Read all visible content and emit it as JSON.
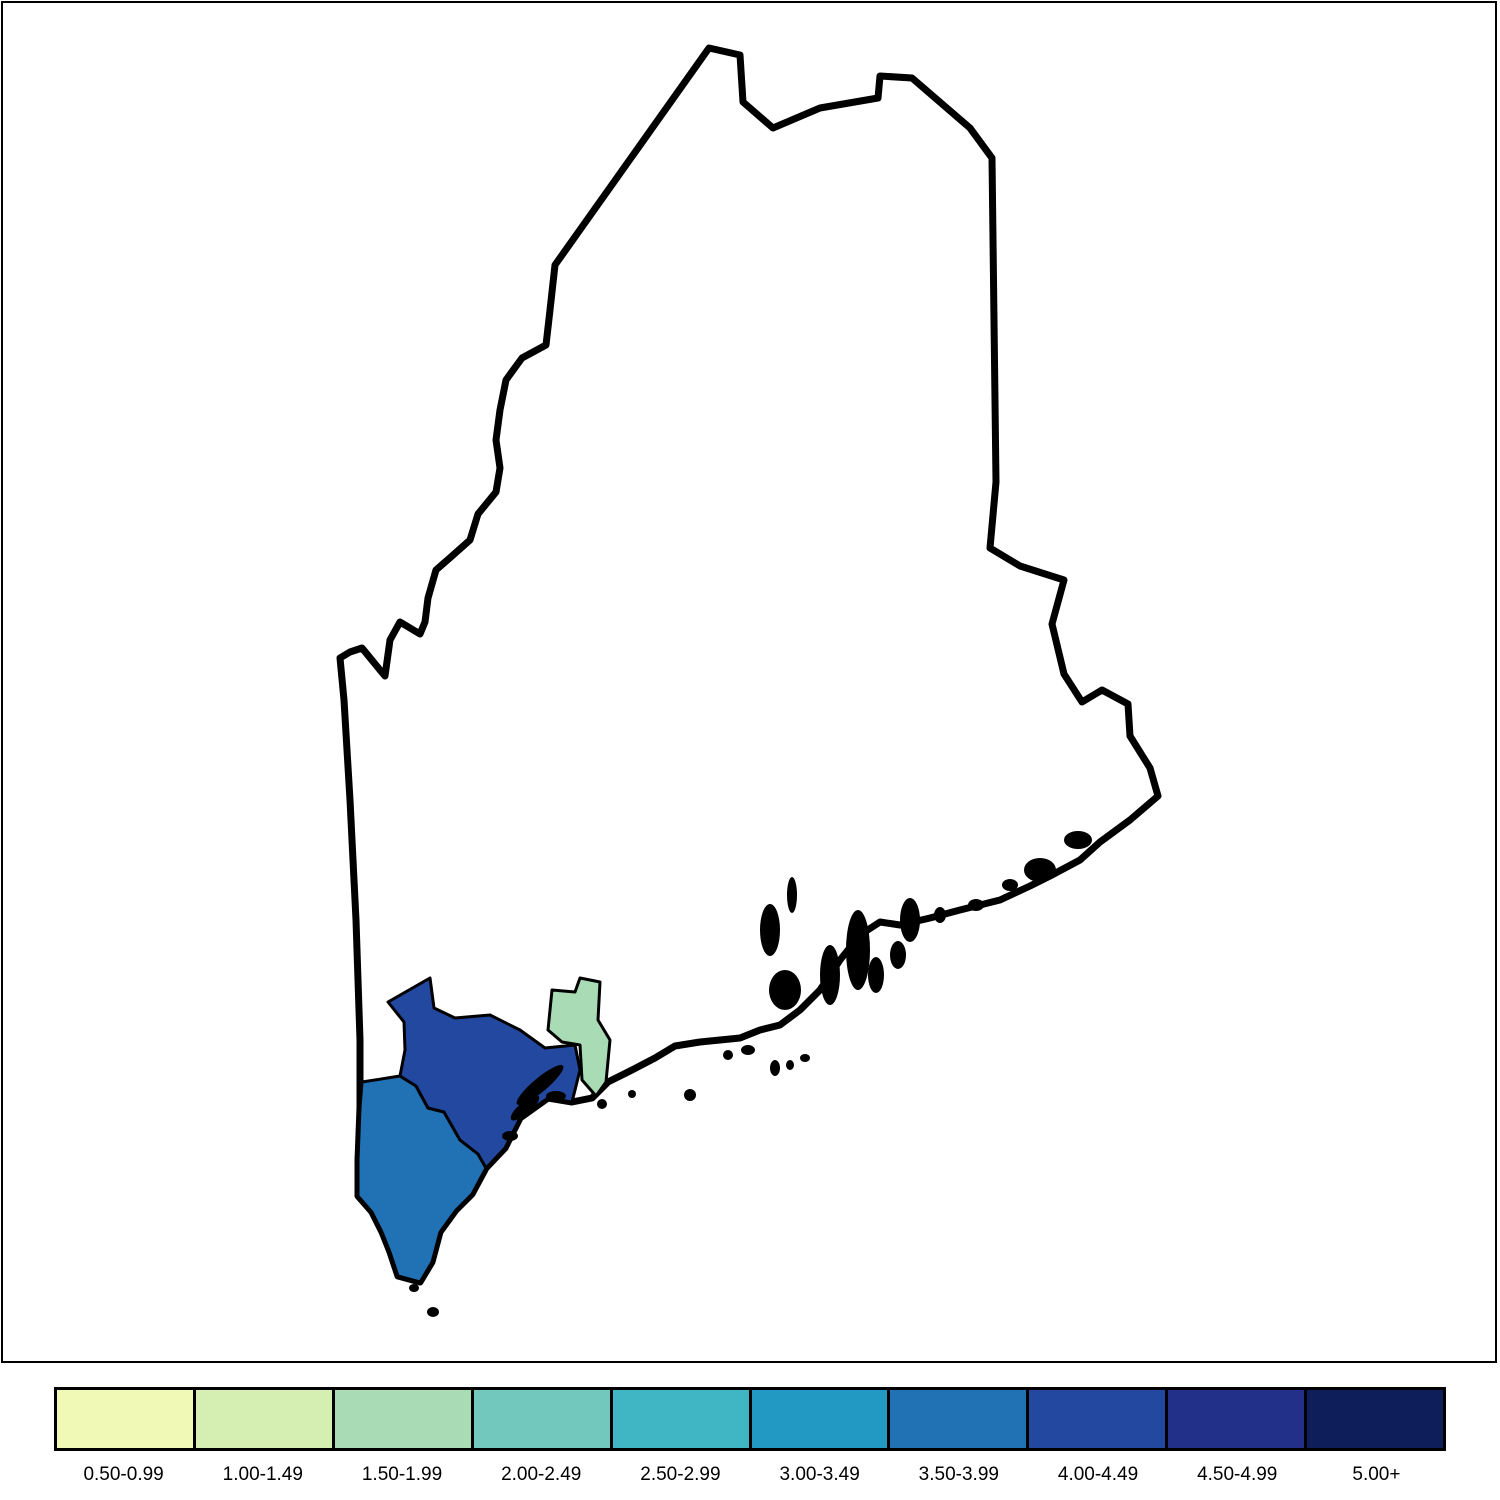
{
  "map": {
    "region": "Maine",
    "highlighted_regions": [
      {
        "id": "york",
        "bin": "3.50-3.99",
        "color": "#2171b5"
      },
      {
        "id": "cumberland",
        "bin": "4.00-4.49",
        "color": "#2348a0"
      },
      {
        "id": "sagadahoc",
        "bin": "1.50-1.99",
        "color": "#a9dcb5"
      }
    ]
  },
  "legend": {
    "bins": [
      {
        "label": "0.50-0.99",
        "color": "#f0f9b6"
      },
      {
        "label": "1.00-1.49",
        "color": "#d5efb2"
      },
      {
        "label": "1.50-1.99",
        "color": "#a9dcb5"
      },
      {
        "label": "2.00-2.49",
        "color": "#73c8bd"
      },
      {
        "label": "2.50-2.99",
        "color": "#40b5c4"
      },
      {
        "label": "3.00-3.49",
        "color": "#2299c2"
      },
      {
        "label": "3.50-3.99",
        "color": "#2171b5"
      },
      {
        "label": "4.00-4.49",
        "color": "#2348a0"
      },
      {
        "label": "4.50-4.99",
        "color": "#223089"
      },
      {
        "label": "5.00+",
        "color": "#0e1e5a"
      }
    ]
  }
}
